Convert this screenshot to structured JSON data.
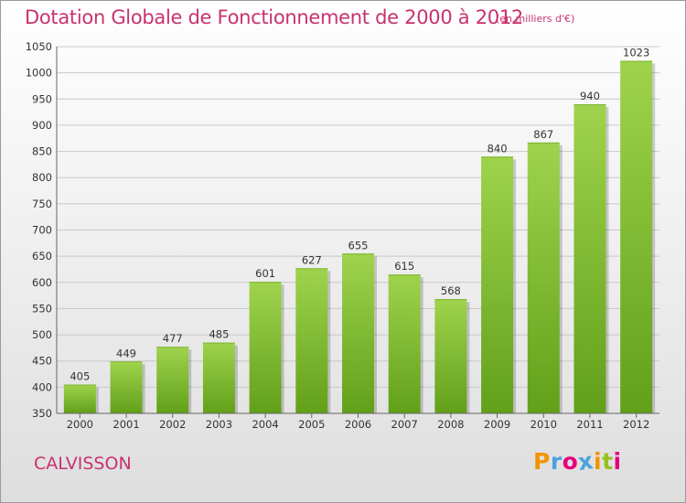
{
  "header": {
    "title": "Dotation Globale de Fonctionnement de 2000 à 2012",
    "subtitle": "(en milliers d'€)"
  },
  "footer": {
    "commune": "CALVISSON",
    "brand_letters": [
      "P",
      "r",
      "o",
      "x",
      "i",
      "t",
      "i"
    ],
    "brand_colors": [
      "#f29400",
      "#4aa3df",
      "#e5007e",
      "#4aa3df",
      "#f29400",
      "#95c11f",
      "#e5007e"
    ]
  },
  "colors": {
    "title": "#c8326e",
    "bar_top": "#9fd34d",
    "bar_bottom": "#62a01a",
    "grid": "#c8c8c8",
    "axis_text": "#333333"
  },
  "chart_data": {
    "type": "bar",
    "categories": [
      "2000",
      "2001",
      "2002",
      "2003",
      "2004",
      "2005",
      "2006",
      "2007",
      "2008",
      "2009",
      "2010",
      "2011",
      "2012"
    ],
    "values": [
      405,
      449,
      477,
      485,
      601,
      627,
      655,
      615,
      568,
      840,
      867,
      940,
      1023
    ],
    "title": "Dotation Globale de Fonctionnement de 2000 à 2012",
    "subtitle": "(en milliers d'€)",
    "xlabel": "",
    "ylabel": "",
    "ylim": [
      350,
      1050
    ],
    "yticks": [
      350,
      400,
      450,
      500,
      550,
      600,
      650,
      700,
      750,
      800,
      850,
      900,
      950,
      1000,
      1050
    ],
    "grid": true,
    "data_labels": true
  }
}
